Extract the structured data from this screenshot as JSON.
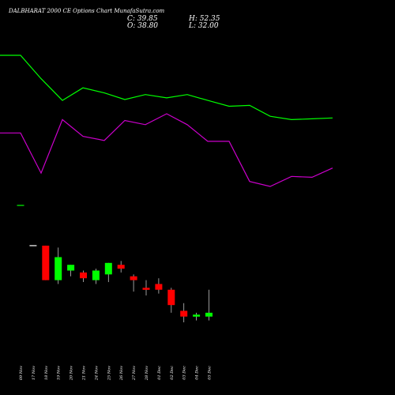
{
  "header": {
    "title": "DALBHARAT 2000 CE Options Chart MunafaSutra.com",
    "close": "C: 39.85",
    "open": "O: 38.80",
    "high": "H: 52.35",
    "low": "L: 32.00"
  },
  "chart_data": {
    "type": "candlestick",
    "title": "DALBHARAT 2000 CE Options Chart MunafaSutra.com",
    "x_labels": [
      "09 Nov",
      "17 Nov",
      "18 Nov",
      "19 Nov",
      "20 Nov",
      "21 Nov",
      "24 Nov",
      "25 Nov",
      "26 Nov",
      "27 Nov",
      "28 Nov",
      "01 Dec",
      "02 Dec",
      "03 Dec",
      "04 Dec",
      "05 Dec"
    ],
    "grid": false,
    "colors": {
      "up": "#00ff00",
      "down": "#ff0000",
      "line_upper": "#00ff00",
      "line_lower": "#cc00cc",
      "background": "#000000",
      "wick": "#c0c0c0"
    },
    "candles": [
      {
        "date": "09 Nov",
        "open": null,
        "high": null,
        "low": null,
        "close": null
      },
      {
        "date": "17 Nov",
        "open": null,
        "high": null,
        "low": null,
        "close": null
      },
      {
        "date": "18 Nov",
        "open": 150,
        "high": 150,
        "low": 132,
        "close": 132,
        "dir": "down"
      },
      {
        "date": "19 Nov",
        "open": 132,
        "high": 149,
        "low": 130,
        "close": 144,
        "dir": "up"
      },
      {
        "date": "20 Nov",
        "open": 137,
        "high": 140,
        "low": 134,
        "close": 140,
        "dir": "up"
      },
      {
        "date": "21 Nov",
        "open": 136,
        "high": 137,
        "low": 131,
        "close": 133,
        "dir": "down"
      },
      {
        "date": "24 Nov",
        "open": 132,
        "high": 138,
        "low": 130,
        "close": 137,
        "dir": "up"
      },
      {
        "date": "25 Nov",
        "open": 141,
        "high": 141,
        "low": 131,
        "close": 135,
        "dir": "up"
      },
      {
        "date": "26 Nov",
        "open": 138,
        "high": 142,
        "low": 136,
        "close": 140,
        "dir": "down"
      },
      {
        "date": "27 Nov",
        "open": 134,
        "high": 135,
        "low": 126,
        "close": 132,
        "dir": "down"
      },
      {
        "date": "28 Nov",
        "open": 128,
        "high": 132,
        "low": 124,
        "close": 127,
        "dir": "down"
      },
      {
        "date": "01 Dec",
        "open": 130,
        "high": 133,
        "low": 125,
        "close": 127,
        "dir": "down"
      },
      {
        "date": "02 Dec",
        "open": 127,
        "high": 128,
        "low": 115,
        "close": 119,
        "dir": "down"
      },
      {
        "date": "03 Dec",
        "open": 116,
        "high": 120,
        "low": 110,
        "close": 113,
        "dir": "down"
      },
      {
        "date": "04 Dec",
        "open": 113,
        "high": 115,
        "low": 111,
        "close": 114,
        "dir": "up"
      },
      {
        "date": "05 Dec",
        "open": 113,
        "high": 127,
        "low": 111,
        "close": 115,
        "dir": "up"
      }
    ],
    "flat_marks": [
      {
        "date": "09 Nov",
        "value": 171,
        "color": "#00ff00"
      },
      {
        "date": "17 Nov",
        "value": 150,
        "color": "#ffffff"
      }
    ],
    "lines": [
      {
        "color": "#00ff00",
        "values": [
          404,
          404,
          376,
          350,
          365,
          359,
          351,
          357,
          353,
          357,
          350,
          343,
          344,
          331,
          327,
          328,
          329
        ]
      },
      {
        "color": "#cc00cc",
        "values": [
          311,
          311,
          263,
          327,
          307,
          302,
          326,
          321,
          334,
          321,
          301,
          301,
          253,
          247,
          259,
          258,
          269
        ]
      }
    ]
  }
}
